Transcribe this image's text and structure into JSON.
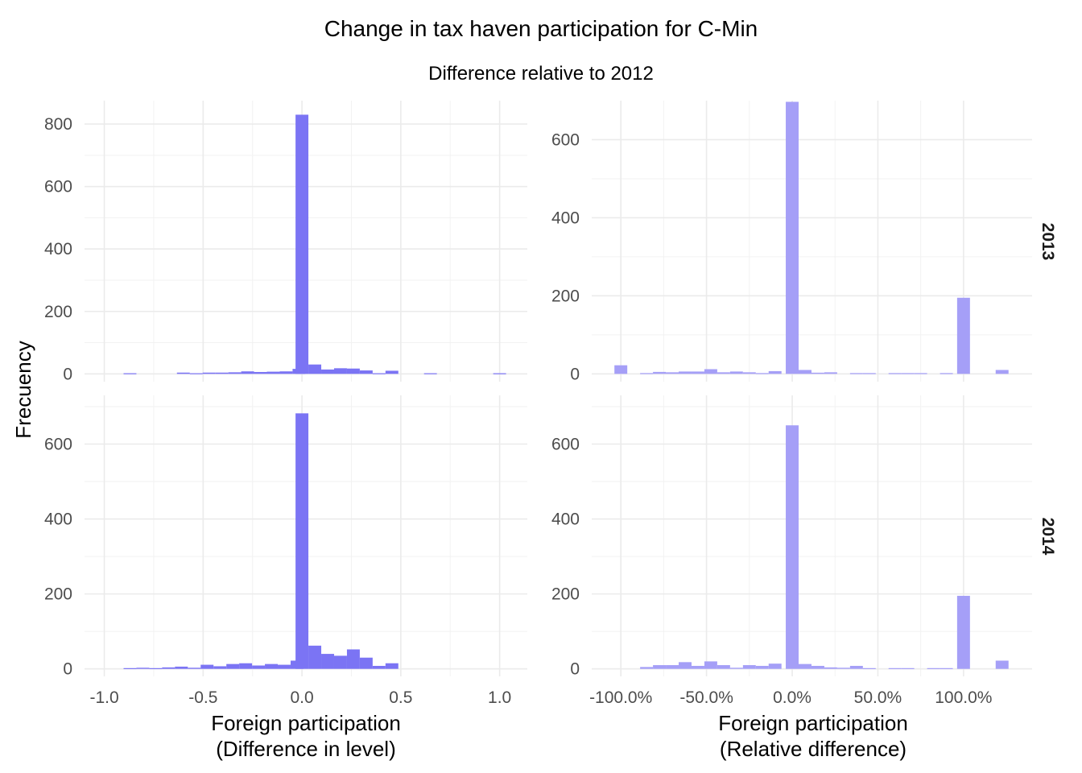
{
  "chart_data": {
    "type": "bar",
    "title": "Change in tax haven participation for C-Min",
    "subtitle": "Difference relative to 2012",
    "ylabel": "Frecuency",
    "rows": [
      "2013",
      "2014"
    ],
    "columns": [
      {
        "xlabel": [
          "Foreign participation",
          "(Difference in level)"
        ],
        "xlim": [
          -1.1,
          1.14
        ],
        "xticks": [
          -1.0,
          -0.5,
          0.0,
          0.5,
          1.0
        ],
        "xtick_labels": [
          "-1.0",
          "-0.5",
          "0.0",
          "0.5",
          "1.0"
        ],
        "bin_width": 0.065,
        "color": "#7b74f4"
      },
      {
        "xlabel": [
          "Foreign participation",
          "(Relative difference)"
        ],
        "xlim": [
          -117,
          140
        ],
        "xticks": [
          -100,
          -50,
          0,
          50,
          100
        ],
        "xtick_labels": [
          "-100.0%",
          "-50.0%",
          "0.0%",
          "50.0%",
          "100.0%"
        ],
        "bin_width": 7.5,
        "color": "#a59ff7"
      }
    ],
    "panels": [
      {
        "row": "2013",
        "col": 0,
        "ylim": [
          -25,
          875
        ],
        "yticks": [
          0,
          200,
          400,
          600,
          800
        ],
        "bins": [
          {
            "x": -0.87,
            "y": 2
          },
          {
            "x": -0.6,
            "y": 4
          },
          {
            "x": -0.535,
            "y": 2
          },
          {
            "x": -0.47,
            "y": 4
          },
          {
            "x": -0.405,
            "y": 4
          },
          {
            "x": -0.34,
            "y": 5
          },
          {
            "x": -0.275,
            "y": 8
          },
          {
            "x": -0.21,
            "y": 6
          },
          {
            "x": -0.145,
            "y": 7
          },
          {
            "x": -0.08,
            "y": 8
          },
          {
            "x": -0.015,
            "y": 16
          },
          {
            "x": 0.0,
            "y": 830
          },
          {
            "x": 0.065,
            "y": 30
          },
          {
            "x": 0.13,
            "y": 14
          },
          {
            "x": 0.195,
            "y": 18
          },
          {
            "x": 0.26,
            "y": 17
          },
          {
            "x": 0.325,
            "y": 11
          },
          {
            "x": 0.39,
            "y": 2
          },
          {
            "x": 0.455,
            "y": 10
          },
          {
            "x": 0.65,
            "y": 2
          },
          {
            "x": 1.0,
            "y": 2
          }
        ]
      },
      {
        "row": "2013",
        "col": 1,
        "ylim": [
          -20,
          700
        ],
        "yticks": [
          0,
          200,
          400,
          600
        ],
        "bins": [
          {
            "x": -100,
            "y": 22
          },
          {
            "x": -85,
            "y": 2
          },
          {
            "x": -77.5,
            "y": 5
          },
          {
            "x": -70,
            "y": 4
          },
          {
            "x": -62.5,
            "y": 6
          },
          {
            "x": -55,
            "y": 6
          },
          {
            "x": -47.5,
            "y": 12
          },
          {
            "x": -40,
            "y": 4
          },
          {
            "x": -32.5,
            "y": 6
          },
          {
            "x": -25,
            "y": 4
          },
          {
            "x": -17.5,
            "y": 2
          },
          {
            "x": -10,
            "y": 7
          },
          {
            "x": 0,
            "y": 697
          },
          {
            "x": 7.5,
            "y": 10
          },
          {
            "x": 15,
            "y": 3
          },
          {
            "x": 22.5,
            "y": 4
          },
          {
            "x": 37.5,
            "y": 2
          },
          {
            "x": 45,
            "y": 2
          },
          {
            "x": 60,
            "y": 2
          },
          {
            "x": 67.5,
            "y": 2
          },
          {
            "x": 75,
            "y": 2
          },
          {
            "x": 90,
            "y": 2
          },
          {
            "x": 100,
            "y": 195
          },
          {
            "x": 122.5,
            "y": 10
          }
        ]
      },
      {
        "row": "2014",
        "col": 0,
        "ylim": [
          -20,
          730
        ],
        "yticks": [
          0,
          200,
          400,
          600
        ],
        "bins": [
          {
            "x": -0.87,
            "y": 2
          },
          {
            "x": -0.805,
            "y": 3
          },
          {
            "x": -0.74,
            "y": 2
          },
          {
            "x": -0.675,
            "y": 4
          },
          {
            "x": -0.61,
            "y": 6
          },
          {
            "x": -0.545,
            "y": 3
          },
          {
            "x": -0.48,
            "y": 11
          },
          {
            "x": -0.415,
            "y": 7
          },
          {
            "x": -0.35,
            "y": 13
          },
          {
            "x": -0.285,
            "y": 15
          },
          {
            "x": -0.22,
            "y": 9
          },
          {
            "x": -0.155,
            "y": 13
          },
          {
            "x": -0.09,
            "y": 11
          },
          {
            "x": -0.025,
            "y": 22
          },
          {
            "x": 0.0,
            "y": 682
          },
          {
            "x": 0.065,
            "y": 62
          },
          {
            "x": 0.13,
            "y": 40
          },
          {
            "x": 0.195,
            "y": 35
          },
          {
            "x": 0.26,
            "y": 52
          },
          {
            "x": 0.325,
            "y": 30
          },
          {
            "x": 0.39,
            "y": 8
          },
          {
            "x": 0.455,
            "y": 15
          }
        ]
      },
      {
        "row": "2014",
        "col": 1,
        "ylim": [
          -20,
          730
        ],
        "yticks": [
          0,
          200,
          400,
          600
        ],
        "bins": [
          {
            "x": -85,
            "y": 5
          },
          {
            "x": -77.5,
            "y": 10
          },
          {
            "x": -70,
            "y": 10
          },
          {
            "x": -62.5,
            "y": 18
          },
          {
            "x": -55,
            "y": 8
          },
          {
            "x": -47.5,
            "y": 20
          },
          {
            "x": -40,
            "y": 10
          },
          {
            "x": -32.5,
            "y": 3
          },
          {
            "x": -25,
            "y": 10
          },
          {
            "x": -17.5,
            "y": 8
          },
          {
            "x": -10,
            "y": 14
          },
          {
            "x": 0,
            "y": 650
          },
          {
            "x": 7.5,
            "y": 13
          },
          {
            "x": 15,
            "y": 8
          },
          {
            "x": 22.5,
            "y": 4
          },
          {
            "x": 30,
            "y": 3
          },
          {
            "x": 37.5,
            "y": 8
          },
          {
            "x": 45,
            "y": 2
          },
          {
            "x": 60,
            "y": 2
          },
          {
            "x": 67.5,
            "y": 2
          },
          {
            "x": 82.5,
            "y": 2
          },
          {
            "x": 90,
            "y": 2
          },
          {
            "x": 100,
            "y": 195
          },
          {
            "x": 122.5,
            "y": 22
          }
        ]
      }
    ]
  }
}
